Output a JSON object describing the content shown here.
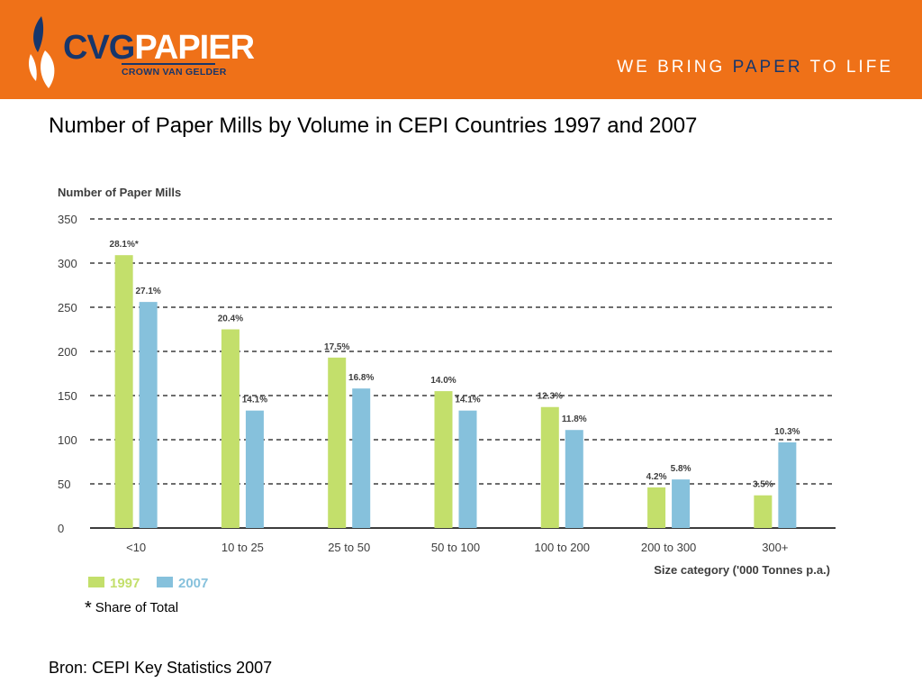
{
  "header": {
    "brand_part1": "CVG",
    "brand_part2": "PAPIER",
    "brand_sub": "CROWN VAN GELDER",
    "tagline_part1": "WE BRING ",
    "tagline_highlight": "PAPER",
    "tagline_part2": " TO LIFE",
    "background_color": "#ef7118",
    "brand_color": "#17366b"
  },
  "slide": {
    "title": "Number of Paper Mills by Volume in CEPI Countries 1997 and 2007",
    "footnote_star": "*",
    "footnote_text": "Share of Total",
    "source": "Bron: CEPI Key Statistics 2007"
  },
  "chart_data": {
    "type": "bar",
    "title": "",
    "ylabel": "Number of Paper Mills",
    "xlabel": "Size category ('000 Tonnes p.a.)",
    "ylim": [
      0,
      350
    ],
    "yticks": [
      0,
      50,
      100,
      150,
      200,
      250,
      300,
      350
    ],
    "grid": true,
    "legend_position": "bottom-left",
    "categories": [
      "<10",
      "10 to 25",
      "25 to 50",
      "50 to 100",
      "100 to 200",
      "200 to 300",
      "300+"
    ],
    "series": [
      {
        "name": "1997",
        "color": "#c3df6b",
        "values": [
          309,
          225,
          193,
          155,
          137,
          46,
          37
        ],
        "labels": [
          "28.1%*",
          "20.4%",
          "17.5%",
          "14.0%",
          "12.3%",
          "4.2%",
          "3.5%"
        ]
      },
      {
        "name": "2007",
        "color": "#86c1dc",
        "values": [
          256,
          133,
          158,
          133,
          111,
          55,
          97
        ],
        "labels": [
          "27.1%",
          "14.1%",
          "16.8%",
          "14.1%",
          "11.8%",
          "5.8%",
          "10.3%"
        ]
      }
    ]
  }
}
